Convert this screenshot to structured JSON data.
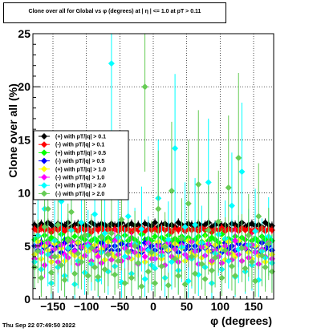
{
  "title": "Clone  over all for Global vs φ (degrees) at |  η | <= 1.0 at pT > 0.11",
  "footer": "Thu Sep 22 07:49:50 2022",
  "chart_data": {
    "type": "scatter",
    "xlabel": "φ (degrees)",
    "ylabel": "Clone  over all (%)",
    "xlim": [
      -180,
      180
    ],
    "ylim": [
      0,
      25
    ],
    "x_ticks": [
      -150,
      -100,
      -50,
      0,
      50,
      100,
      150
    ],
    "x_tick_labels": [
      "−150",
      "−100",
      "−50",
      "0",
      "50",
      "100",
      "150"
    ],
    "y_ticks": [
      0,
      5,
      10,
      15,
      20,
      25
    ],
    "y_tick_labels": [
      "0",
      "5",
      "10",
      "15",
      "20",
      "25"
    ],
    "grid": true,
    "legend_position": "left",
    "n_bins": 72,
    "series": [
      {
        "name": "(+) with pT/|q| > 0.1",
        "color": "#000000",
        "marker": "diamond",
        "values": [
          7.0,
          6.8,
          7.1,
          6.9,
          7.2,
          7.0,
          6.7,
          7.1,
          7.0,
          6.9,
          7.2,
          6.8,
          7.0,
          7.1,
          6.9,
          7.0,
          6.8,
          7.2,
          7.0,
          6.9,
          7.1,
          7.0,
          6.8,
          7.1,
          6.9,
          7.0,
          7.2,
          6.8,
          7.0,
          7.1,
          6.9,
          7.0,
          6.7,
          7.1,
          7.0,
          6.9,
          7.2,
          6.8,
          7.0,
          7.1,
          6.9,
          7.0,
          6.8,
          7.2,
          7.0,
          6.9,
          7.1,
          7.0,
          6.8,
          7.1,
          6.9,
          7.0,
          7.2,
          6.8,
          7.0,
          7.1,
          6.9,
          7.0,
          6.7,
          7.1,
          7.0,
          6.9,
          7.2,
          6.8,
          7.0,
          7.1,
          6.9,
          7.0,
          6.8,
          7.2,
          7.0,
          6.9
        ],
        "errors": [
          0.4,
          0.4,
          0.4,
          0.4,
          0.4,
          0.4,
          0.4,
          0.4,
          0.4,
          0.4,
          0.4,
          0.4,
          0.4,
          0.4,
          0.4,
          0.4,
          0.4,
          0.4,
          0.4,
          0.4,
          0.4,
          0.4,
          0.4,
          0.4,
          0.4,
          0.4,
          0.4,
          0.4,
          0.4,
          0.4,
          0.4,
          0.4,
          0.4,
          0.4,
          0.4,
          0.4,
          0.4,
          0.4,
          0.4,
          0.4,
          0.4,
          0.4,
          0.4,
          0.4,
          0.4,
          0.4,
          0.4,
          0.4,
          0.4,
          0.4,
          0.4,
          0.4,
          0.4,
          0.4,
          0.4,
          0.4,
          0.4,
          0.4,
          0.4,
          0.4,
          0.4,
          0.4,
          0.4,
          0.4,
          0.4,
          0.4,
          0.4,
          0.4,
          0.4,
          0.4,
          0.4,
          0.4
        ]
      },
      {
        "name": "(-) with pT/|q| > 0.1",
        "color": "#ff0000",
        "marker": "diamond",
        "values": [
          6.6,
          6.4,
          6.7,
          6.5,
          6.6,
          6.3,
          6.6,
          6.5,
          6.7,
          6.4,
          6.6,
          6.5,
          6.6,
          6.4,
          6.7,
          6.5,
          6.6,
          6.3,
          6.6,
          6.5,
          6.7,
          6.4,
          6.6,
          6.5,
          6.6,
          6.4,
          6.7,
          6.5,
          6.6,
          6.3,
          6.6,
          6.5,
          6.7,
          6.4,
          6.6,
          6.5,
          6.6,
          6.4,
          6.7,
          6.5,
          6.6,
          6.3,
          6.6,
          6.5,
          6.7,
          6.4,
          6.6,
          6.5,
          6.6,
          6.4,
          6.7,
          6.5,
          6.6,
          6.3,
          6.6,
          6.5,
          6.7,
          6.4,
          6.6,
          6.5,
          6.6,
          6.4,
          6.7,
          6.5,
          6.6,
          6.3,
          6.6,
          6.5,
          6.7,
          6.4,
          6.6,
          6.5
        ],
        "errors": [
          0.4,
          0.4,
          0.4,
          0.4,
          0.4,
          0.4,
          0.4,
          0.4,
          0.4,
          0.4,
          0.4,
          0.4,
          0.4,
          0.4,
          0.4,
          0.4,
          0.4,
          0.4,
          0.4,
          0.4,
          0.4,
          0.4,
          0.4,
          0.4,
          0.4,
          0.4,
          0.4,
          0.4,
          0.4,
          0.4,
          0.4,
          0.4,
          0.4,
          0.4,
          0.4,
          0.4,
          0.4,
          0.4,
          0.4,
          0.4,
          0.4,
          0.4,
          0.4,
          0.4,
          0.4,
          0.4,
          0.4,
          0.4,
          0.4,
          0.4,
          0.4,
          0.4,
          0.4,
          0.4,
          0.4,
          0.4,
          0.4,
          0.4,
          0.4,
          0.4,
          0.4,
          0.4,
          0.4,
          0.4,
          0.4,
          0.4,
          0.4,
          0.4,
          0.4,
          0.4,
          0.4,
          0.4
        ]
      },
      {
        "name": "(+) with pT/|q| > 0.5",
        "color": "#00ff00",
        "marker": "diamond",
        "values": [
          5.6,
          5.9,
          5.4,
          6.0,
          5.5,
          5.8,
          5.6,
          5.3,
          6.1,
          5.6,
          5.7,
          5.5,
          5.9,
          5.4,
          5.8,
          5.6,
          6.0,
          5.5,
          5.7,
          5.4,
          5.9,
          5.6,
          5.8,
          5.5,
          5.6,
          5.9,
          5.4,
          6.0,
          5.5,
          5.8,
          5.6,
          5.3,
          6.1,
          5.6,
          5.7,
          5.5,
          5.9,
          5.4,
          5.8,
          5.6,
          6.0,
          5.5,
          5.7,
          5.4,
          5.9,
          5.6,
          5.8,
          5.5,
          5.6,
          5.9,
          5.4,
          6.0,
          5.5,
          5.8,
          5.6,
          5.3,
          6.1,
          5.6,
          5.7,
          5.5,
          5.9,
          5.4,
          5.8,
          5.6,
          6.0,
          5.5,
          5.7,
          5.4,
          5.9,
          5.6,
          5.8,
          5.5
        ],
        "errors": [
          0.6,
          0.6,
          0.6,
          0.6,
          0.6,
          0.6,
          0.6,
          0.6,
          0.6,
          0.6,
          0.6,
          0.6,
          0.6,
          0.6,
          0.6,
          0.6,
          0.6,
          0.6,
          0.6,
          0.6,
          0.6,
          0.6,
          0.6,
          0.6,
          0.6,
          0.6,
          0.6,
          0.6,
          0.6,
          0.6,
          0.6,
          0.6,
          0.6,
          0.6,
          0.6,
          0.6,
          0.6,
          0.6,
          0.6,
          0.6,
          0.6,
          0.6,
          0.6,
          0.6,
          0.6,
          0.6,
          0.6,
          0.6,
          0.6,
          0.6,
          0.6,
          0.6,
          0.6,
          0.6,
          0.6,
          0.6,
          0.6,
          0.6,
          0.6,
          0.6,
          0.6,
          0.6,
          0.6,
          0.6,
          0.6,
          0.6,
          0.6,
          0.6,
          0.6,
          0.6,
          0.6,
          0.6
        ]
      },
      {
        "name": "(-) with pT/|q| > 0.5",
        "color": "#0000ff",
        "marker": "diamond",
        "values": [
          5.0,
          4.6,
          5.2,
          4.8,
          5.1,
          4.5,
          5.0,
          4.9,
          4.4,
          5.3,
          4.7,
          5.0,
          4.6,
          5.2,
          4.8,
          5.1,
          4.5,
          5.0,
          4.9,
          4.4,
          5.3,
          4.7,
          5.0,
          4.6,
          5.0,
          4.6,
          5.2,
          4.8,
          5.1,
          4.5,
          5.0,
          4.9,
          4.4,
          5.3,
          4.7,
          5.0,
          4.6,
          5.2,
          4.8,
          5.1,
          4.5,
          5.0,
          4.9,
          4.4,
          5.3,
          4.7,
          5.0,
          4.6,
          5.0,
          4.6,
          5.2,
          4.8,
          5.1,
          4.5,
          5.0,
          4.9,
          4.4,
          5.3,
          4.7,
          5.0,
          4.6,
          5.2,
          4.8,
          5.1,
          4.5,
          5.0,
          4.9,
          4.4,
          5.3,
          4.7,
          5.0,
          4.6
        ],
        "errors": [
          0.6,
          0.6,
          0.6,
          0.6,
          0.6,
          0.6,
          0.6,
          0.6,
          0.6,
          0.6,
          0.6,
          0.6,
          0.6,
          0.6,
          0.6,
          0.6,
          0.6,
          0.6,
          0.6,
          0.6,
          0.6,
          0.6,
          0.6,
          0.6,
          0.6,
          0.6,
          0.6,
          0.6,
          0.6,
          0.6,
          0.6,
          0.6,
          0.6,
          0.6,
          0.6,
          0.6,
          0.6,
          0.6,
          0.6,
          0.6,
          0.6,
          0.6,
          0.6,
          0.6,
          0.6,
          0.6,
          0.6,
          0.6,
          0.6,
          0.6,
          0.6,
          0.6,
          0.6,
          0.6,
          0.6,
          0.6,
          0.6,
          0.6,
          0.6,
          0.6,
          0.6,
          0.6,
          0.6,
          0.6,
          0.6,
          0.6,
          0.6,
          0.6,
          0.6,
          0.6,
          0.6,
          0.6
        ]
      },
      {
        "name": "(+) with pT/|q| > 1.0",
        "color": "#ffff00",
        "marker": "diamond",
        "values": [
          4.2,
          5.4,
          3.8,
          5.0,
          4.6,
          3.5,
          5.2,
          4.0,
          4.8,
          3.6,
          5.5,
          4.4,
          4.1,
          5.3,
          3.9,
          4.9,
          4.5,
          3.4,
          5.1,
          4.2,
          4.7,
          3.7,
          5.4,
          4.3,
          4.0,
          5.5,
          3.6,
          4.8,
          4.4,
          3.8,
          5.0,
          4.1,
          4.6,
          3.5,
          5.3,
          4.2,
          4.2,
          5.4,
          3.8,
          5.0,
          4.6,
          3.5,
          5.2,
          4.0,
          4.8,
          3.6,
          5.5,
          4.4,
          4.1,
          5.3,
          3.9,
          4.9,
          4.5,
          3.4,
          5.1,
          4.2,
          4.7,
          3.7,
          5.4,
          4.3,
          4.0,
          5.5,
          3.6,
          4.8,
          4.4,
          3.8,
          5.0,
          4.1,
          4.6,
          3.5,
          5.3,
          4.2
        ],
        "errors": [
          1.2,
          1.2,
          1.2,
          1.2,
          1.2,
          1.2,
          1.2,
          1.2,
          1.2,
          1.2,
          1.2,
          1.2,
          1.2,
          1.2,
          1.2,
          1.2,
          1.2,
          1.2,
          1.2,
          1.2,
          1.2,
          1.2,
          1.2,
          1.2,
          1.2,
          1.2,
          1.2,
          1.2,
          1.2,
          1.2,
          1.2,
          1.2,
          1.2,
          1.2,
          1.2,
          1.2,
          1.2,
          1.2,
          1.2,
          1.2,
          1.2,
          1.2,
          1.2,
          1.2,
          1.2,
          1.2,
          1.2,
          1.2,
          1.2,
          1.2,
          1.2,
          1.2,
          1.2,
          1.2,
          1.2,
          1.2,
          1.2,
          1.2,
          1.2,
          1.2,
          1.2,
          1.2,
          1.2,
          1.2,
          1.2,
          1.2,
          1.2,
          1.2,
          1.2,
          1.2,
          1.2,
          1.2
        ]
      },
      {
        "name": "(-) with pT/|q| > 1.0",
        "color": "#ff00ff",
        "marker": "diamond",
        "values": [
          3.8,
          5.0,
          4.4,
          3.2,
          5.3,
          4.0,
          4.7,
          3.5,
          5.1,
          4.2,
          3.9,
          5.4,
          4.5,
          3.3,
          4.9,
          4.1,
          5.2,
          3.6,
          4.6,
          4.0,
          3.4,
          5.0,
          4.3,
          3.7,
          5.5,
          4.2,
          3.6,
          4.8,
          3.9,
          5.1,
          4.4,
          3.3,
          4.7,
          4.0,
          5.3,
          3.8,
          3.8,
          5.0,
          4.4,
          3.2,
          5.3,
          4.0,
          4.7,
          3.5,
          5.1,
          4.2,
          3.9,
          5.4,
          4.5,
          3.3,
          4.9,
          4.1,
          5.2,
          3.6,
          4.6,
          4.0,
          3.4,
          5.0,
          4.3,
          3.7,
          5.5,
          4.2,
          3.6,
          4.8,
          3.9,
          5.1,
          4.4,
          3.3,
          4.7,
          4.0,
          5.3,
          3.8
        ],
        "errors": [
          1.2,
          1.2,
          1.2,
          1.2,
          1.2,
          1.2,
          1.2,
          1.2,
          1.2,
          1.2,
          1.2,
          1.2,
          1.2,
          1.2,
          1.2,
          1.2,
          1.2,
          1.2,
          1.2,
          1.2,
          1.2,
          1.2,
          1.2,
          1.2,
          1.2,
          1.2,
          1.2,
          1.2,
          1.2,
          1.2,
          1.2,
          1.2,
          1.2,
          1.2,
          1.2,
          1.2,
          1.2,
          1.2,
          1.2,
          1.2,
          1.2,
          1.2,
          1.2,
          1.2,
          1.2,
          1.2,
          1.2,
          1.2,
          1.2,
          1.2,
          1.2,
          1.2,
          1.2,
          1.2,
          1.2,
          1.2,
          1.2,
          1.2,
          1.2,
          1.2,
          1.2,
          1.2,
          1.2,
          1.2,
          1.2,
          1.2,
          1.2,
          1.2,
          1.2,
          1.2,
          1.2,
          1.2
        ]
      },
      {
        "name": "(+) with pT/|q| > 2.0",
        "color": "#00ffff",
        "marker": "diamond",
        "values": [
          3.5,
          6.0,
          2.8,
          8.5,
          4.2,
          1.5,
          5.5,
          3.0,
          9.2,
          2.2,
          4.8,
          6.5,
          1.4,
          3.6,
          7.2,
          2.5,
          5.0,
          3.3,
          8.0,
          1.8,
          4.4,
          6.2,
          2.6,
          22.2,
          3.1,
          5.8,
          1.6,
          4.0,
          7.8,
          2.4,
          5.2,
          3.4,
          6.6,
          1.9,
          4.6,
          3.2,
          2.9,
          9.5,
          4.1,
          2.0,
          5.6,
          3.5,
          14.2,
          2.7,
          4.9,
          6.8,
          1.7,
          3.8,
          7.0,
          2.3,
          5.3,
          3.0,
          11.0,
          1.5,
          4.3,
          6.1,
          2.8,
          5.7,
          3.6,
          8.8,
          2.1,
          4.7,
          12.0,
          2.6,
          5.1,
          3.2,
          6.4,
          1.8,
          4.5,
          3.9,
          5.9,
          3.4
        ],
        "errors": [
          2.5,
          3.5,
          2.2,
          5.0,
          3.0,
          1.5,
          3.8,
          2.4,
          5.5,
          2.0,
          3.2,
          4.0,
          1.4,
          2.6,
          4.5,
          2.1,
          3.4,
          2.5,
          4.8,
          1.6,
          3.0,
          4.0,
          2.2,
          9.0,
          2.4,
          3.6,
          1.5,
          2.8,
          4.6,
          2.0,
          3.4,
          2.5,
          4.0,
          1.7,
          3.2,
          2.4,
          2.3,
          5.5,
          2.9,
          1.8,
          3.6,
          2.6,
          7.0,
          2.2,
          3.3,
          4.2,
          1.6,
          2.8,
          4.4,
          2.0,
          3.5,
          2.3,
          6.0,
          1.5,
          3.0,
          3.9,
          2.2,
          3.6,
          2.6,
          5.0,
          1.9,
          3.2,
          6.5,
          2.1,
          3.4,
          2.4,
          4.0,
          1.6,
          3.1,
          2.8,
          3.7,
          2.5
        ]
      },
      {
        "name": "(-) with pT/|q| > 2.0",
        "color": "#66cc55",
        "marker": "diamond",
        "values": [
          3.0,
          4.5,
          2.0,
          6.8,
          8.5,
          2.5,
          4.0,
          7.0,
          3.2,
          1.8,
          5.5,
          8.2,
          2.4,
          4.3,
          3.5,
          6.0,
          2.2,
          4.8,
          3.0,
          2.1,
          5.8,
          2.8,
          4.2,
          6.2,
          2.3,
          3.6,
          7.5,
          1.5,
          4.5,
          2.0,
          5.0,
          3.4,
          1.2,
          20.0,
          2.6,
          4.4,
          1.5,
          8.5,
          3.1,
          4.9,
          1.3,
          10.2,
          3.8,
          2.2,
          5.7,
          1.4,
          9.0,
          4.0,
          2.4,
          10.8,
          3.3,
          1.9,
          6.5,
          2.7,
          3.9,
          7.3,
          2.0,
          4.6,
          10.5,
          3.1,
          2.2,
          13.3,
          4.8,
          2.9,
          6.0,
          3.5,
          1.7,
          7.8,
          4.1,
          3.0,
          5.2,
          2.6
        ],
        "errors": [
          2.0,
          3.0,
          1.8,
          4.5,
          5.0,
          2.0,
          2.8,
          4.5,
          2.4,
          1.6,
          3.5,
          5.0,
          2.0,
          3.0,
          2.6,
          4.0,
          1.8,
          3.2,
          2.2,
          1.8,
          3.8,
          2.2,
          3.0,
          4.0,
          1.9,
          2.6,
          4.8,
          1.4,
          3.1,
          1.7,
          3.3,
          2.5,
          1.1,
          8.0,
          2.0,
          3.0,
          1.3,
          5.5,
          2.3,
          3.3,
          1.2,
          6.5,
          2.7,
          1.8,
          3.8,
          1.3,
          6.0,
          2.8,
          1.9,
          7.0,
          2.4,
          1.6,
          4.2,
          2.1,
          2.8,
          4.8,
          1.7,
          3.1,
          6.8,
          2.3,
          1.8,
          8.0,
          3.2,
          2.2,
          3.9,
          2.5,
          1.5,
          5.0,
          2.9,
          2.3,
          3.4,
          2.0
        ]
      }
    ]
  }
}
